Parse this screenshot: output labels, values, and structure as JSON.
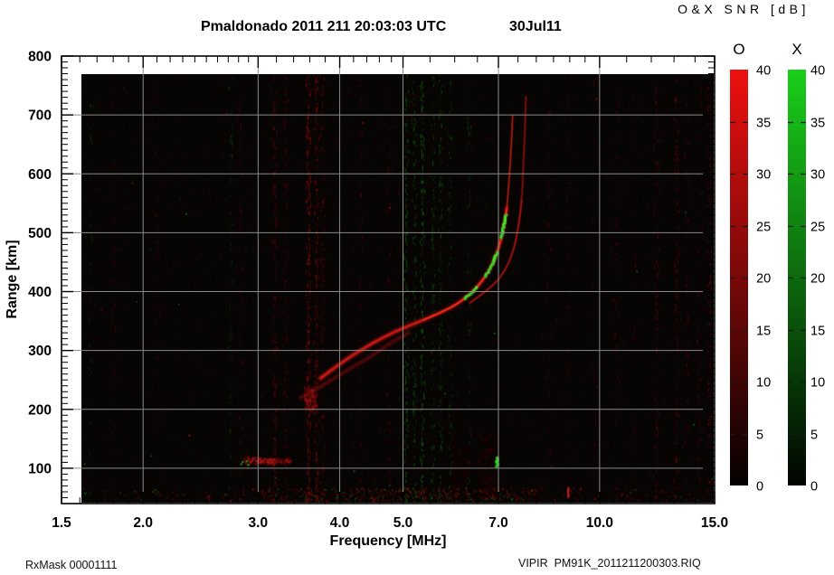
{
  "figure": {
    "title": "Pmaldonado 2011 211 20:03:03 UTC",
    "date_label": "30Jul11",
    "colorbar_title": "O&X SNR [dB]",
    "footer_left": "RxMask 00001111",
    "footer_right": "VIPIR  PM91K_2011211200303.RIQ"
  },
  "chart_data": {
    "type": "heatmap",
    "title": "Pmaldonado 2011 211 20:03:03 UTC",
    "date_label": "30Jul11",
    "xlabel": "Frequency [MHz]",
    "ylabel": "Range [km]",
    "x_scale": "log",
    "xlim": [
      1.5,
      15
    ],
    "ylim": [
      40,
      800
    ],
    "x_major_ticks": [
      1.5,
      2,
      3,
      4,
      5,
      7,
      10,
      15
    ],
    "x_tick_labels": [
      "1.5",
      "2.0",
      "3.0",
      "4.0",
      "5.0",
      "7.0",
      "10.0",
      "15.0"
    ],
    "x_minor_ticks": [
      1.6,
      1.7,
      1.8,
      1.9,
      2.1,
      2.2,
      2.3,
      2.4,
      2.5,
      2.6,
      2.7,
      2.8,
      2.9,
      3.2,
      3.4,
      3.6,
      3.8,
      4.2,
      4.4,
      4.6,
      4.8,
      5.5,
      6,
      6.5,
      7.5,
      8,
      8.5,
      9,
      9.5,
      11,
      12,
      13,
      14
    ],
    "y_major_ticks": [
      100,
      200,
      300,
      400,
      500,
      600,
      700,
      800
    ],
    "y_tick_labels": [
      "100",
      "200",
      "300",
      "400",
      "500",
      "600",
      "700",
      "800"
    ],
    "y_minor_step": 10,
    "grid": true,
    "grid_x": [
      2,
      3,
      4,
      5,
      7,
      10
    ],
    "grid_y": [
      100,
      200,
      300,
      400,
      500,
      600,
      700
    ],
    "colorbar": {
      "title": "O&X SNR [dB]",
      "min": 0,
      "max": 40,
      "ticks": [
        0,
        5,
        10,
        15,
        20,
        25,
        30,
        35,
        40
      ],
      "bars": [
        {
          "label": "O",
          "color": "#ee1010",
          "bottom_color": "#040101"
        },
        {
          "label": "X",
          "color": "#19cf19",
          "bottom_color": "#010401"
        }
      ]
    },
    "signals": {
      "data_extent_mhz": [
        1.61,
        15
      ],
      "data_extent_km": [
        42,
        769
      ],
      "o_trace_mhz_km": [
        [
          3.74,
          253
        ],
        [
          4.04,
          281
        ],
        [
          4.43,
          309
        ],
        [
          4.85,
          332
        ],
        [
          5.38,
          352
        ],
        [
          5.95,
          373
        ],
        [
          6.33,
          395
        ],
        [
          6.63,
          419
        ],
        [
          6.84,
          444
        ],
        [
          7.01,
          474
        ],
        [
          7.12,
          505
        ],
        [
          7.21,
          542
        ],
        [
          7.27,
          588
        ],
        [
          7.32,
          642
        ],
        [
          7.36,
          699
        ]
      ],
      "x_trace_mhz_km": [
        [
          6.33,
          381
        ],
        [
          6.84,
          407
        ],
        [
          7.17,
          435
        ],
        [
          7.38,
          468
        ],
        [
          7.51,
          508
        ],
        [
          7.6,
          554
        ],
        [
          7.64,
          611
        ],
        [
          7.69,
          680
        ],
        [
          7.71,
          731
        ]
      ],
      "lower_trace_mhz_km": [
        [
          3.49,
          220
        ],
        [
          3.8,
          243
        ],
        [
          4.1,
          266
        ],
        [
          4.43,
          287
        ],
        [
          4.77,
          312
        ],
        [
          5.1,
          330
        ]
      ],
      "e_region_echo": {
        "f_mhz": [
          2.84,
          3.36
        ],
        "range_km": 114,
        "spread_km": 7
      },
      "mid_blob": {
        "f_mhz": [
          3.52,
          3.66
        ],
        "range_km": [
          198,
          242
        ]
      },
      "green_patches": [
        {
          "f_mhz": 6.24,
          "range_km": [
            388,
            407
          ],
          "on_trace": true
        },
        {
          "f_mhz": 6.72,
          "range_km": [
            426,
            448
          ],
          "on_trace": true
        },
        {
          "f_mhz": 6.86,
          "range_km": [
            450,
            467
          ],
          "on_trace": true
        },
        {
          "f_mhz": 7.08,
          "range_km": [
            492,
            530
          ],
          "on_trace": true
        },
        {
          "f_mhz": 6.97,
          "range_km": [
            103,
            118
          ],
          "on_trace": false
        }
      ],
      "red_dash": {
        "f_mhz": 8.95,
        "range_km": [
          49,
          68
        ]
      },
      "haze": [
        {
          "f_mhz": [
            6.5,
            6.95
          ],
          "range_km": [
            50,
            160
          ],
          "alpha": 0.14
        },
        {
          "f_mhz": [
            5.9,
            6.3
          ],
          "range_km": [
            45,
            140
          ],
          "alpha": 0.08
        }
      ],
      "rfi_columns": [
        {
          "f": 1.66,
          "color": "green",
          "strength": 0.3
        },
        {
          "f": 1.8,
          "color": "red",
          "strength": 0.4
        },
        {
          "f": 2.1,
          "color": "red",
          "strength": 0.35
        },
        {
          "f": 2.72,
          "color": "green",
          "strength": 0.5
        },
        {
          "f": 2.82,
          "color": "red",
          "strength": 0.6
        },
        {
          "f": 3.18,
          "color": "red",
          "strength": 1.2
        },
        {
          "f": 3.3,
          "color": "red",
          "strength": 0.8
        },
        {
          "f": 3.58,
          "color": "red",
          "strength": 2.0
        },
        {
          "f": 3.68,
          "color": "red",
          "strength": 1.6
        },
        {
          "f": 3.76,
          "color": "red",
          "strength": 1.0
        },
        {
          "f": 4.3,
          "color": "red",
          "strength": 0.5
        },
        {
          "f": 4.75,
          "color": "red",
          "strength": 0.5
        },
        {
          "f": 5.05,
          "color": "green",
          "strength": 1.2
        },
        {
          "f": 5.2,
          "color": "green",
          "strength": 1.0
        },
        {
          "f": 5.35,
          "color": "green",
          "strength": 1.3
        },
        {
          "f": 5.55,
          "color": "green",
          "strength": 0.8
        },
        {
          "f": 5.7,
          "color": "green",
          "strength": 0.9
        },
        {
          "f": 5.9,
          "color": "green",
          "strength": 0.7
        },
        {
          "f": 6.3,
          "color": "green",
          "strength": 0.5
        },
        {
          "f": 8.35,
          "color": "red",
          "strength": 0.5
        },
        {
          "f": 8.95,
          "color": "red",
          "strength": 0.5
        },
        {
          "f": 9.8,
          "color": "red",
          "strength": 0.4
        },
        {
          "f": 10.6,
          "color": "red",
          "strength": 0.5
        },
        {
          "f": 11.3,
          "color": "red",
          "strength": 0.4
        },
        {
          "f": 12.2,
          "color": "red",
          "strength": 0.9
        },
        {
          "f": 13.1,
          "color": "red",
          "strength": 1.0
        },
        {
          "f": 13.6,
          "color": "red",
          "strength": 0.5
        },
        {
          "f": 14.2,
          "color": "red",
          "strength": 0.6
        },
        {
          "f": 14.7,
          "color": "red",
          "strength": 1.1
        }
      ]
    }
  }
}
